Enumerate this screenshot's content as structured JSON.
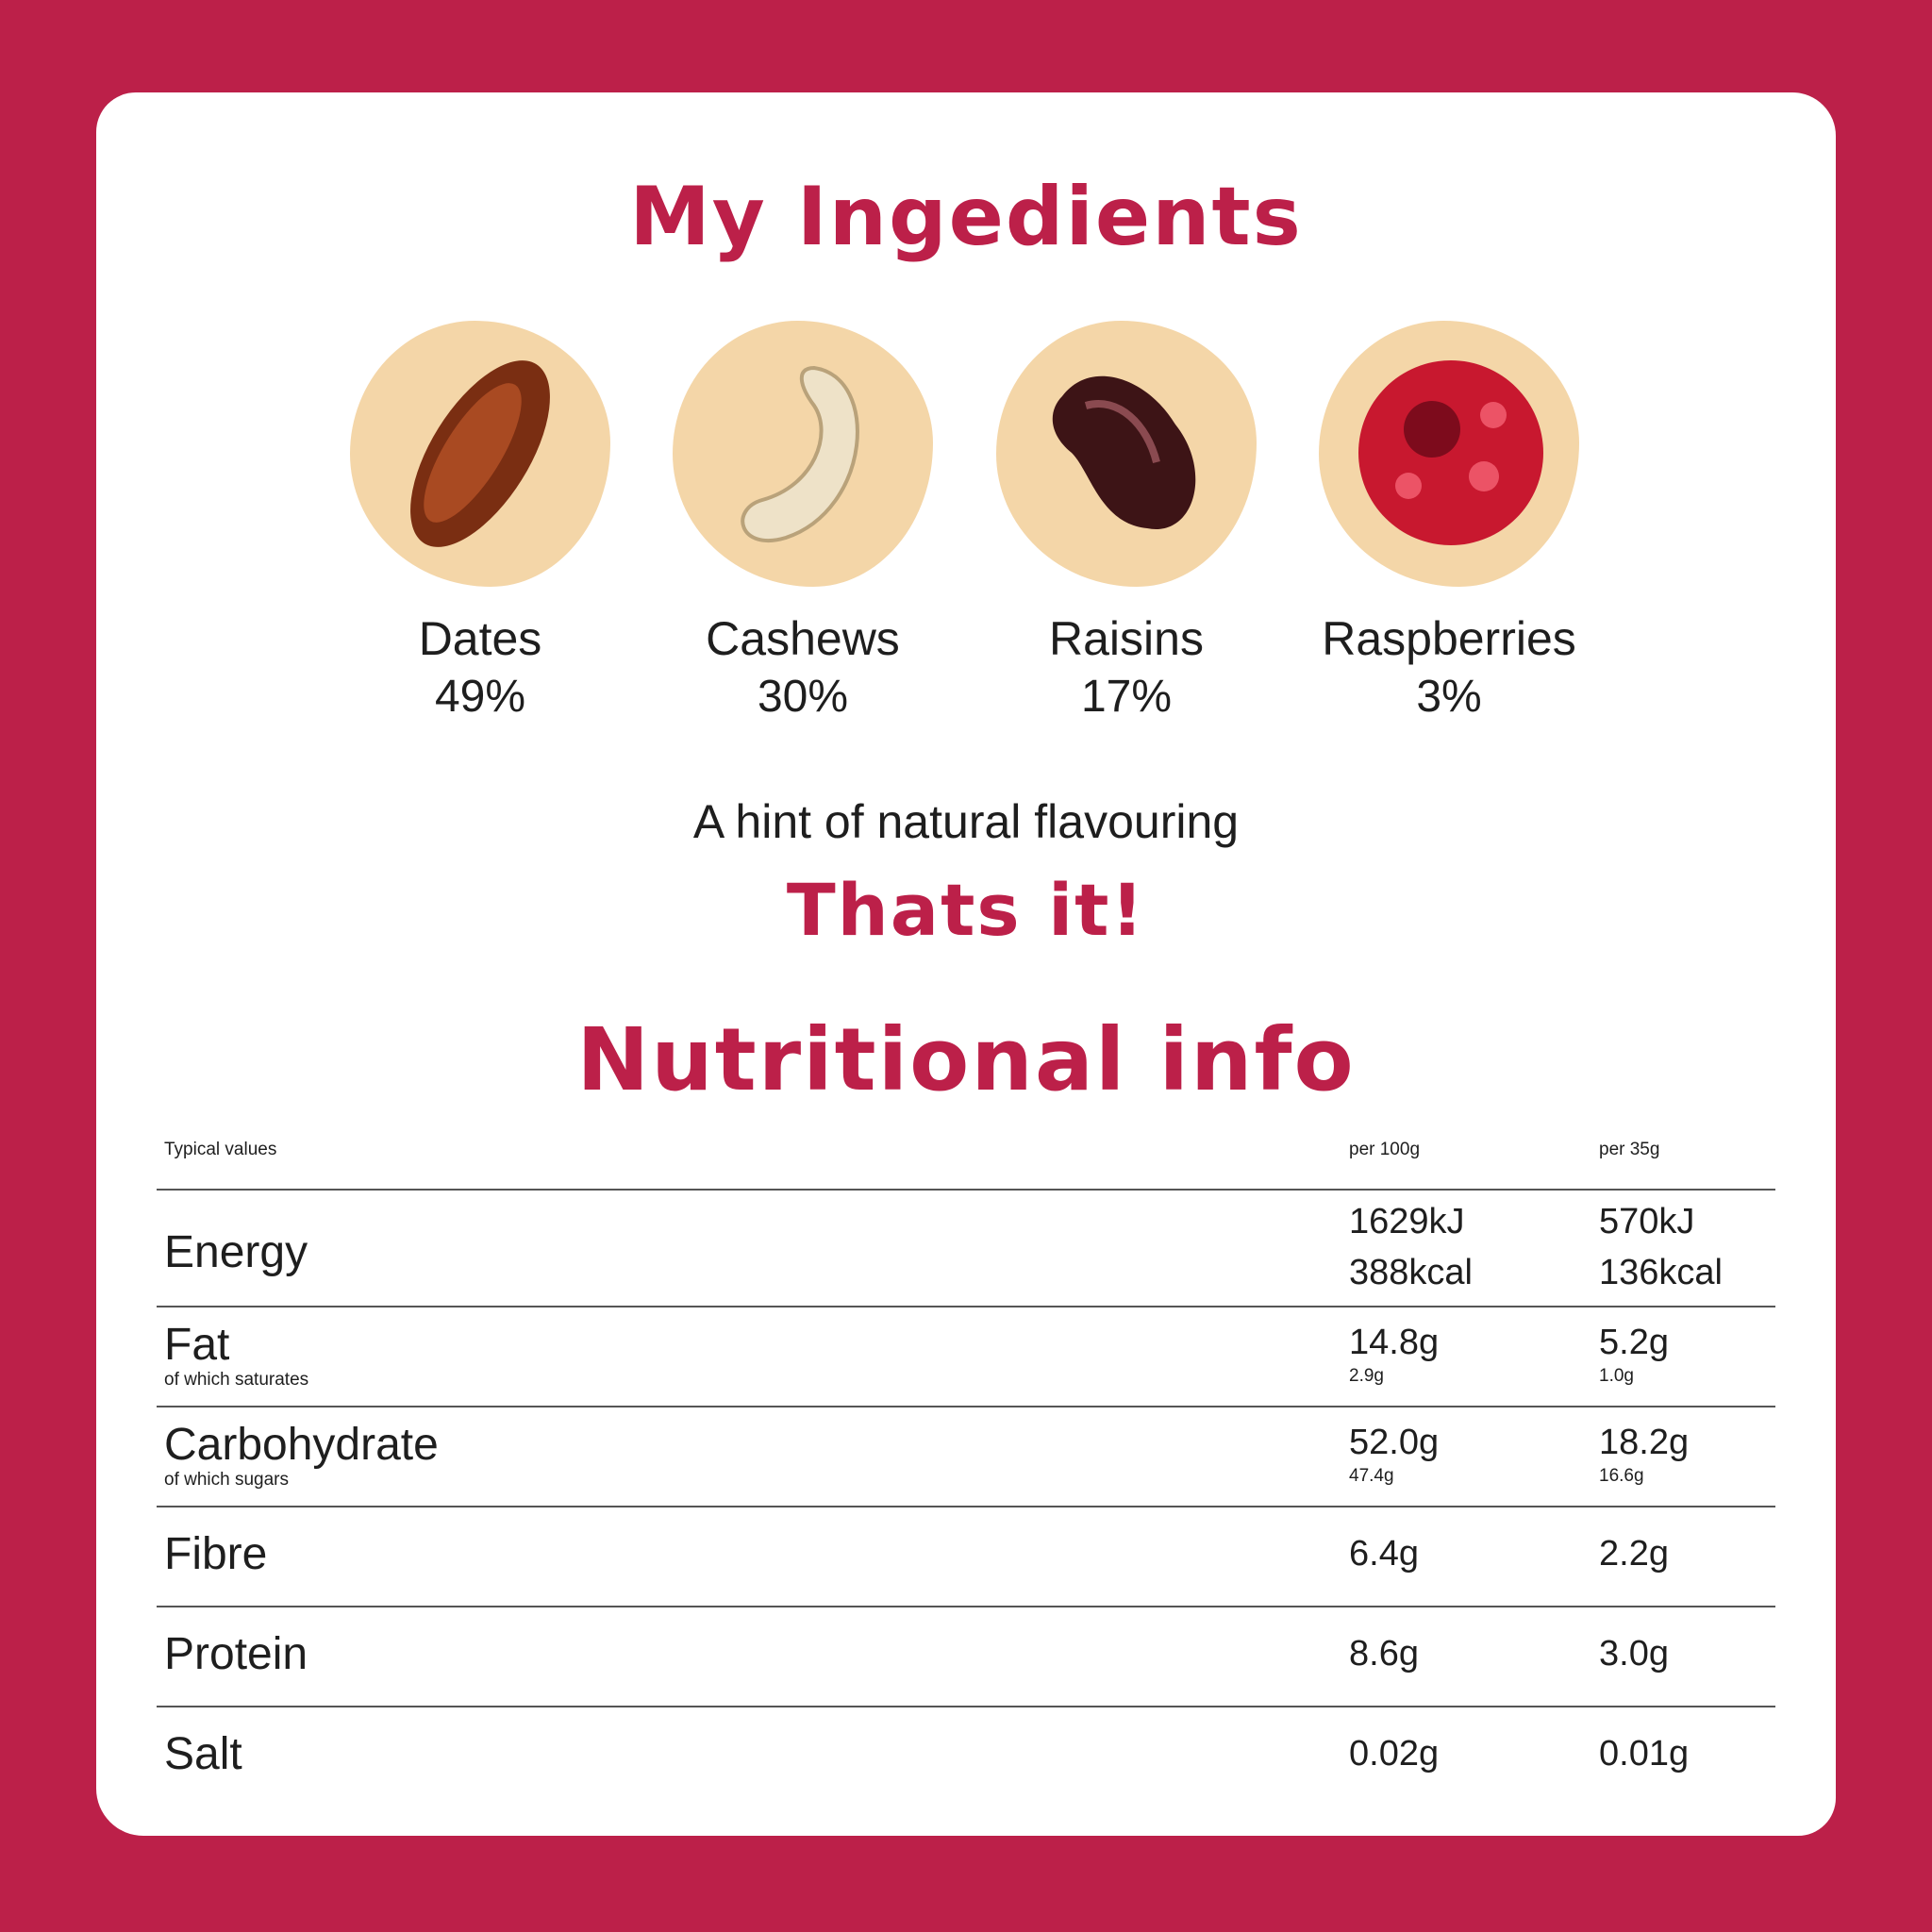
{
  "colors": {
    "brand": "#bc2049",
    "blob": "#f4d6a8"
  },
  "ingredients_title": "My Ingedients",
  "ingredients": [
    {
      "name": "Dates",
      "percent": "49%",
      "icon": "date-icon"
    },
    {
      "name": "Cashews",
      "percent": "30%",
      "icon": "cashew-icon"
    },
    {
      "name": "Raisins",
      "percent": "17%",
      "icon": "raisin-icon"
    },
    {
      "name": "Raspberries",
      "percent": "3%",
      "icon": "raspberry-icon"
    }
  ],
  "hint": "A hint of natural flavouring",
  "thats_it": "Thats it!",
  "nutrition_title": "Nutritional info",
  "nutrition": {
    "headers": [
      "Typical values",
      "per 100g",
      "per 35g"
    ],
    "rows": [
      {
        "label": "Energy",
        "per100": "1629kJ",
        "per100b": "388kcal",
        "per35": "570kJ",
        "per35b": "136kcal"
      },
      {
        "label": "Fat",
        "sub": "of which saturates",
        "per100": "14.8g",
        "per100sub": "2.9g",
        "per35": "5.2g",
        "per35sub": "1.0g"
      },
      {
        "label": "Carbohydrate",
        "sub": "of which sugars",
        "per100": "52.0g",
        "per100sub": "47.4g",
        "per35": "18.2g",
        "per35sub": "16.6g"
      },
      {
        "label": "Fibre",
        "per100": "6.4g",
        "per35": "2.2g"
      },
      {
        "label": "Protein",
        "per100": "8.6g",
        "per35": "3.0g"
      },
      {
        "label": "Salt",
        "per100": "0.02g",
        "per35": "0.01g"
      }
    ]
  }
}
